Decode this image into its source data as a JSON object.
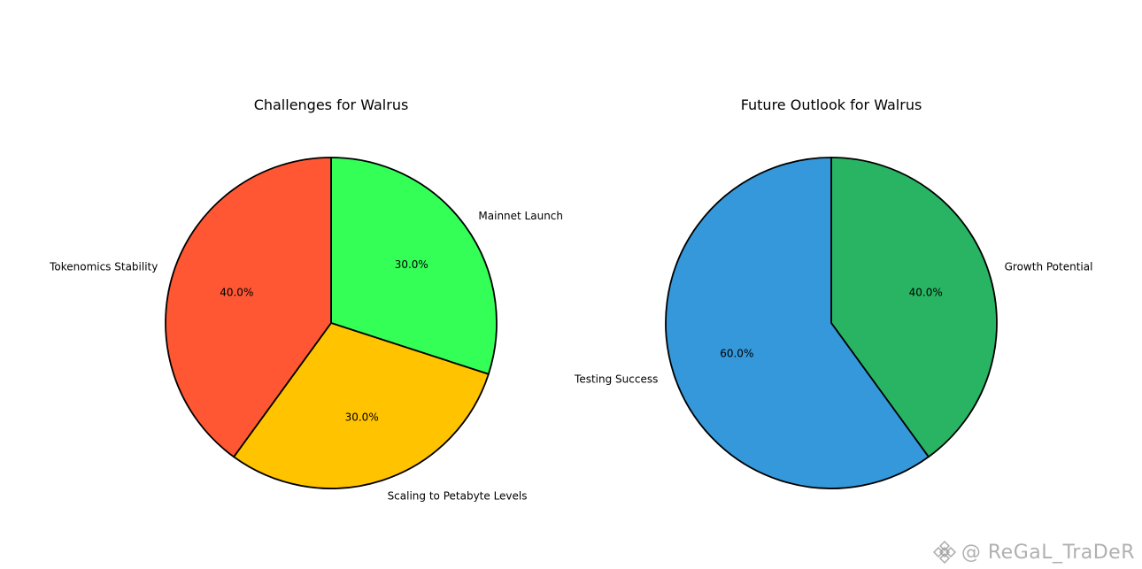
{
  "chart_data": [
    {
      "type": "pie",
      "title": "Challenges for Walrus",
      "labels": [
        "Mainnet Launch",
        "Scaling to Petabyte Levels",
        "Tokenomics Stability"
      ],
      "values": [
        30.0,
        30.0,
        40.0
      ],
      "pct_labels": [
        "30.0%",
        "30.0%",
        "40.0%"
      ],
      "colors": [
        "#33ff57",
        "#ffc300",
        "#ff5733"
      ],
      "start_angle_deg": 90,
      "direction": "clockwise"
    },
    {
      "type": "pie",
      "title": "Future Outlook for Walrus",
      "labels": [
        "Growth Potential",
        "Testing Success"
      ],
      "values": [
        40.0,
        60.0
      ],
      "pct_labels": [
        "40.0%",
        "60.0%"
      ],
      "colors": [
        "#28b463",
        "#3498db"
      ],
      "start_angle_deg": 90,
      "direction": "clockwise"
    }
  ],
  "watermark": {
    "text": "@ ReGaL_TraDeR",
    "icon": "binance-logo-icon"
  }
}
